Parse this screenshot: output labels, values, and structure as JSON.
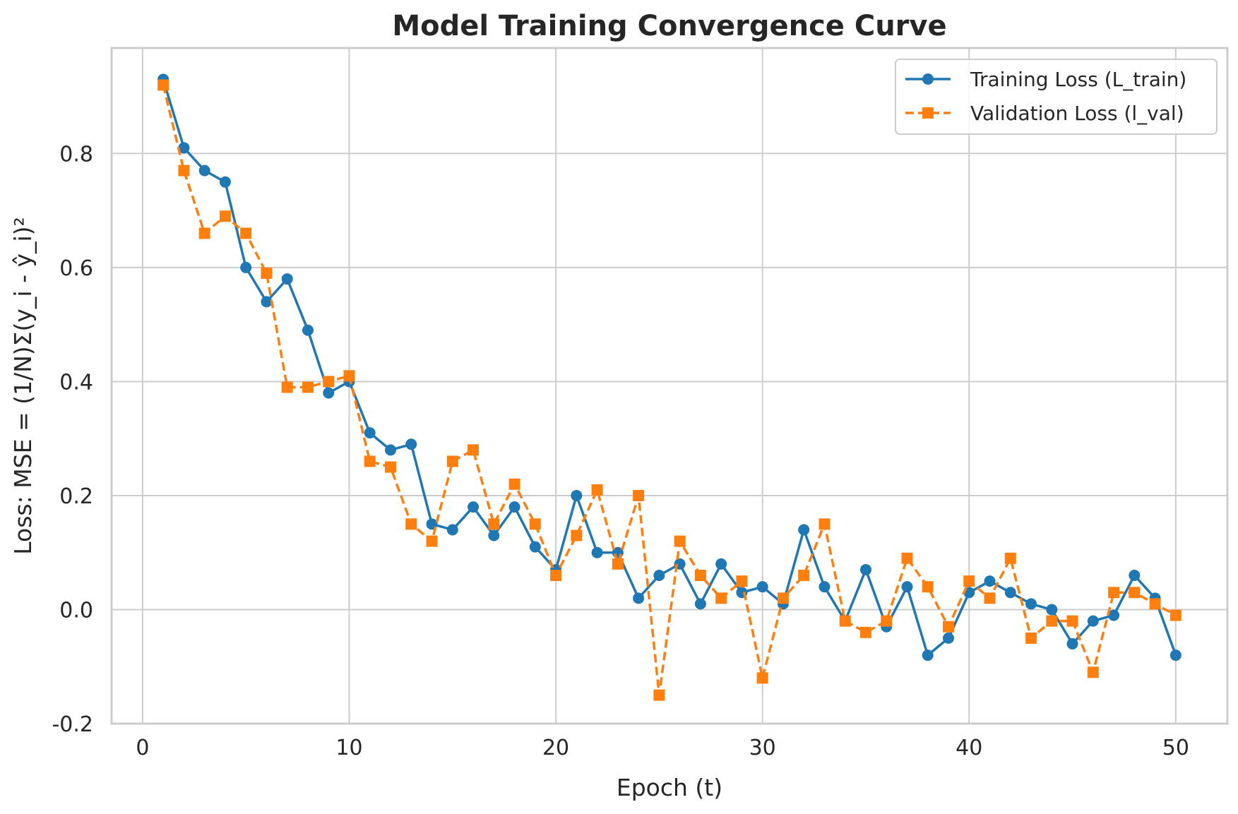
{
  "chart_data": {
    "type": "line",
    "title": "Model Training Convergence Curve",
    "xlabel": "Epoch (t)",
    "ylabel": "Loss: MSE = (1/N)Σ(y_i - ŷ_i)²",
    "xlim": [
      -1.5,
      52.5
    ],
    "ylim": [
      -0.2,
      0.985
    ],
    "xticks": [
      0,
      10,
      20,
      30,
      40,
      50
    ],
    "xtick_labels": [
      "0",
      "10",
      "20",
      "30",
      "40",
      "50"
    ],
    "yticks": [
      -0.2,
      0.0,
      0.2,
      0.4,
      0.6,
      0.8
    ],
    "ytick_labels": [
      "-0.2",
      "0.0",
      "0.2",
      "0.4",
      "0.6",
      "0.8"
    ],
    "grid": true,
    "legend_position": "top-right",
    "x": [
      1,
      2,
      3,
      4,
      5,
      6,
      7,
      8,
      9,
      10,
      11,
      12,
      13,
      14,
      15,
      16,
      17,
      18,
      19,
      20,
      21,
      22,
      23,
      24,
      25,
      26,
      27,
      28,
      29,
      30,
      31,
      32,
      33,
      34,
      35,
      36,
      37,
      38,
      39,
      40,
      41,
      42,
      43,
      44,
      45,
      46,
      47,
      48,
      49,
      50
    ],
    "series": [
      {
        "name": "Training Loss (L_train)",
        "color": "#1f77b4",
        "line_style": "solid",
        "marker": "circle",
        "values": [
          0.93,
          0.81,
          0.77,
          0.75,
          0.6,
          0.54,
          0.58,
          0.49,
          0.38,
          0.4,
          0.31,
          0.28,
          0.29,
          0.15,
          0.14,
          0.18,
          0.13,
          0.18,
          0.11,
          0.07,
          0.2,
          0.1,
          0.1,
          0.02,
          0.06,
          0.08,
          0.01,
          0.08,
          0.03,
          0.04,
          0.01,
          0.14,
          0.04,
          -0.02,
          0.07,
          -0.03,
          0.04,
          -0.08,
          -0.05,
          0.03,
          0.05,
          0.03,
          0.01,
          0.0,
          -0.06,
          -0.02,
          -0.01,
          0.06,
          0.02,
          -0.08
        ]
      },
      {
        "name": "Validation Loss (l_val)",
        "color": "#ff7f0e",
        "line_style": "dashed",
        "marker": "square",
        "values": [
          0.92,
          0.77,
          0.66,
          0.69,
          0.66,
          0.59,
          0.39,
          0.39,
          0.4,
          0.41,
          0.26,
          0.25,
          0.15,
          0.12,
          0.26,
          0.28,
          0.15,
          0.22,
          0.15,
          0.06,
          0.13,
          0.21,
          0.08,
          0.2,
          -0.15,
          0.12,
          0.06,
          0.02,
          0.05,
          -0.12,
          0.02,
          0.06,
          0.15,
          -0.02,
          -0.04,
          -0.02,
          0.09,
          0.04,
          -0.03,
          0.05,
          0.02,
          0.09,
          -0.05,
          -0.02,
          -0.02,
          -0.11,
          0.03,
          0.03,
          0.01,
          -0.01
        ]
      }
    ]
  }
}
